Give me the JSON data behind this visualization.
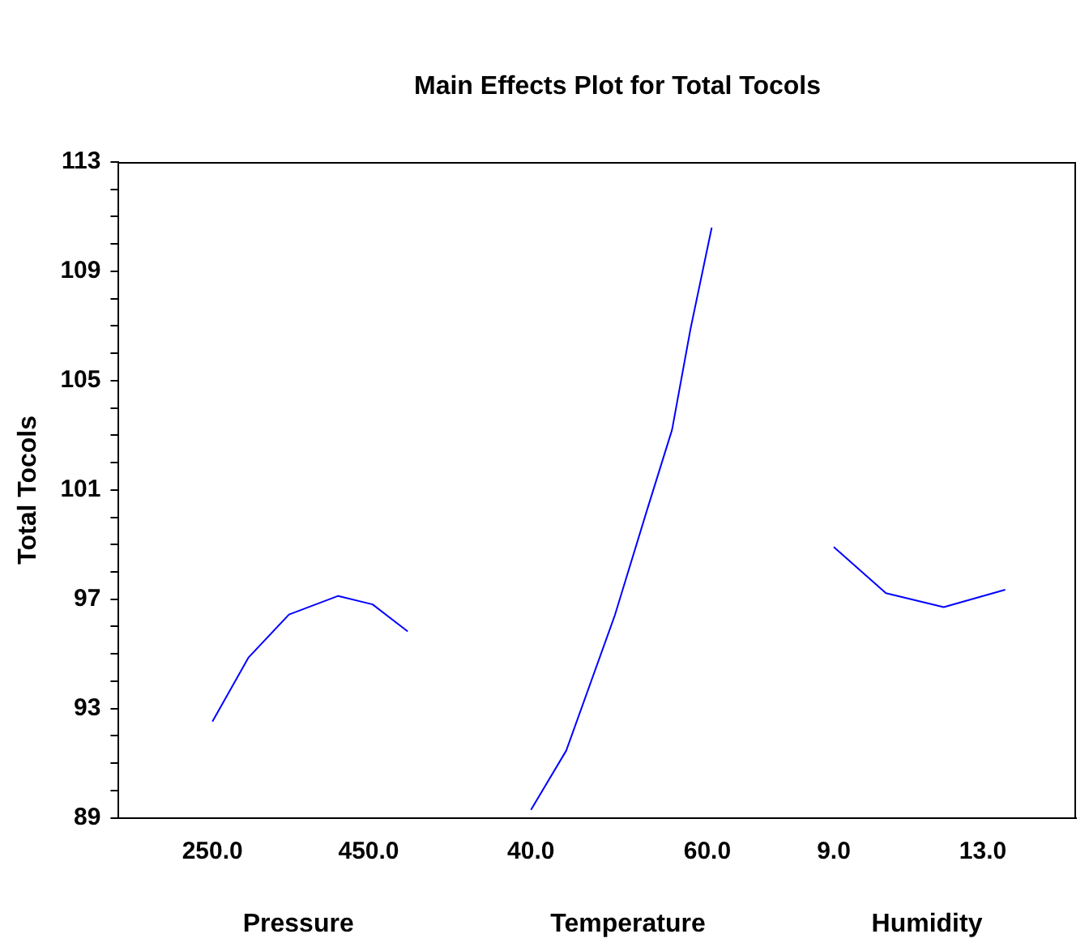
{
  "chart_data": [
    {
      "type": "line",
      "xlabel": "Pressure",
      "ylabel": "Total Tocols",
      "marker": "none",
      "line_style": "solid",
      "grid": false,
      "legend": false,
      "series": [
        {
          "color": "#0000ff",
          "x": [
            250,
            296,
            348,
            411,
            455,
            500
          ],
          "values": [
            92.52,
            94.86,
            96.44,
            97.12,
            96.81,
            95.82
          ]
        }
      ],
      "xlim": [
        130,
        590
      ],
      "xticks": [
        {
          "value": 250,
          "label": "250.0"
        },
        {
          "value": 450,
          "label": "450.0"
        }
      ],
      "ylim": [
        89,
        113
      ],
      "yticks": [
        89,
        {
          "value": 90,
          "label": null
        },
        {
          "value": 91,
          "label": null
        },
        {
          "value": 92,
          "label": null
        },
        93,
        {
          "value": 94,
          "label": null
        },
        {
          "value": 95,
          "label": null
        },
        {
          "value": 96,
          "label": null
        },
        97,
        {
          "value": 98,
          "label": null
        },
        {
          "value": 99,
          "label": null
        },
        {
          "value": 100,
          "label": null
        },
        101,
        {
          "value": 102,
          "label": null
        },
        {
          "value": 103,
          "label": null
        },
        {
          "value": 104,
          "label": null
        },
        105,
        {
          "value": 106,
          "label": null
        },
        {
          "value": 107,
          "label": null
        },
        {
          "value": 108,
          "label": null
        },
        109,
        {
          "value": 110,
          "label": null
        },
        {
          "value": 111,
          "label": null
        },
        {
          "value": 112,
          "label": null
        },
        113
      ]
    },
    {
      "type": "line",
      "title": "Main Effects Plot for Total Tocols",
      "xlabel": "Temperature",
      "marker": "none",
      "line_style": "solid",
      "grid": false,
      "legend": false,
      "tick_labels": "x",
      "series": [
        {
          "color": "#0000ff",
          "x": [
            40,
            44,
            49.5,
            53.2,
            56,
            58.1,
            60.5
          ],
          "values": [
            89.29,
            91.46,
            96.4,
            100.3,
            103.2,
            106.9,
            110.6
          ]
        }
      ],
      "xlim": [
        34,
        68
      ],
      "xticks": [
        {
          "value": 40,
          "label": "40.0"
        },
        {
          "value": 60,
          "label": "60.0"
        }
      ],
      "ylim": [
        89,
        113
      ]
    },
    {
      "type": "line",
      "xlabel": "Humidity",
      "marker": "none",
      "line_style": "solid",
      "grid": false,
      "legend": false,
      "tick_labels": "x",
      "series": [
        {
          "color": "#0000ff",
          "x": [
            9,
            10.4,
            11.95,
            13.6
          ],
          "values": [
            98.91,
            97.22,
            96.71,
            97.35
          ]
        }
      ],
      "xlim": [
        7.5,
        15.5
      ],
      "xticks": [
        {
          "value": 9,
          "label": "9.0"
        },
        {
          "value": 13,
          "label": "13.0"
        }
      ],
      "ylim": [
        89,
        113
      ]
    }
  ]
}
